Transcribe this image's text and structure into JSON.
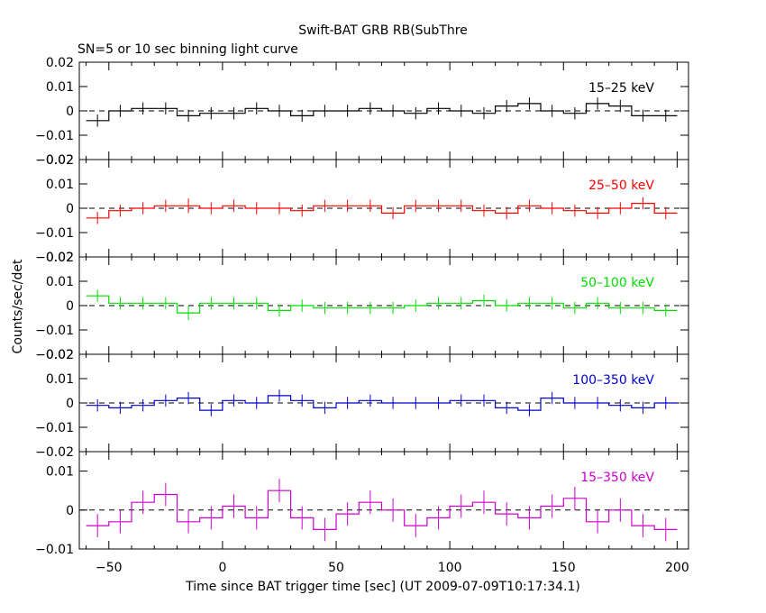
{
  "title": "Swift-BAT GRB RB(SubThre",
  "subtitle": "SN=5 or 10 sec binning light curve",
  "chart_data": {
    "type": "line",
    "xlabel": "Time since BAT trigger time [sec] (UT 2009-07-09T10:17:34.1)",
    "ylabel": "Counts/sec/det",
    "xlim": [
      -63,
      205
    ],
    "x_ticks": [
      -50,
      0,
      50,
      100,
      150,
      200
    ],
    "x_tick_labels": [
      "−50",
      "0",
      "50",
      "100",
      "150",
      "200"
    ],
    "bin_width": 10,
    "bin_centers": [
      -55,
      -45,
      -35,
      -25,
      -15,
      -5,
      5,
      15,
      25,
      35,
      45,
      55,
      65,
      75,
      85,
      95,
      105,
      115,
      125,
      135,
      145,
      155,
      165,
      175,
      185,
      195
    ],
    "baseline": 0,
    "panels": [
      {
        "label": "15–25 keV",
        "color": "#000000",
        "ylim": [
          -0.02,
          0.02
        ],
        "y_ticks": [
          -0.02,
          -0.01,
          0,
          0.01,
          0.02
        ],
        "y_tick_labels": [
          "−0.02",
          "−0.01",
          "0",
          "0.01",
          "0.02"
        ],
        "values": [
          -0.004,
          0.0,
          0.001,
          0.001,
          -0.002,
          -0.001,
          -0.001,
          0.001,
          0.0,
          -0.002,
          0.0,
          0.0,
          0.001,
          0.0,
          -0.001,
          0.001,
          0.0,
          -0.001,
          0.002,
          0.003,
          0.0,
          -0.001,
          0.003,
          0.002,
          -0.002,
          -0.002
        ],
        "errors": [
          0.0025,
          0.0025,
          0.0025,
          0.0025,
          0.0025,
          0.0025,
          0.0025,
          0.0025,
          0.0025,
          0.0025,
          0.0025,
          0.0025,
          0.0025,
          0.0025,
          0.0025,
          0.0025,
          0.0025,
          0.0025,
          0.0025,
          0.0025,
          0.0025,
          0.0025,
          0.0025,
          0.0025,
          0.0025,
          0.0025
        ]
      },
      {
        "label": "25–50 keV",
        "color": "#ff0000",
        "ylim": [
          -0.02,
          0.02
        ],
        "y_ticks": [
          -0.02,
          -0.01,
          0,
          0.01,
          0.02
        ],
        "y_tick_labels": [
          "−0.02",
          "−0.01",
          "0",
          "0.01",
          "0.02"
        ],
        "values": [
          -0.004,
          -0.001,
          0.0,
          0.001,
          0.001,
          0.0,
          0.001,
          0.0,
          0.0,
          -0.001,
          0.001,
          0.001,
          0.001,
          -0.002,
          0.001,
          0.001,
          0.001,
          -0.001,
          -0.002,
          0.001,
          0.0,
          -0.001,
          -0.002,
          0.0,
          0.002,
          -0.002
        ],
        "errors": [
          0.0025,
          0.0025,
          0.0025,
          0.0025,
          0.003,
          0.0025,
          0.0025,
          0.0025,
          0.0025,
          0.0025,
          0.0025,
          0.0025,
          0.0025,
          0.0025,
          0.0025,
          0.0025,
          0.0025,
          0.0025,
          0.0025,
          0.0025,
          0.0025,
          0.0025,
          0.0025,
          0.0025,
          0.0025,
          0.0025
        ]
      },
      {
        "label": "50–100 keV",
        "color": "#00dd00",
        "ylim": [
          -0.02,
          0.02
        ],
        "y_ticks": [
          -0.02,
          -0.01,
          0,
          0.01,
          0.02
        ],
        "y_tick_labels": [
          "−0.02",
          "−0.01",
          "0",
          "0.01",
          "0.02"
        ],
        "values": [
          0.004,
          0.001,
          0.001,
          0.001,
          -0.003,
          0.001,
          0.001,
          0.001,
          -0.002,
          0.0,
          -0.001,
          -0.001,
          -0.001,
          -0.001,
          0.0,
          0.001,
          0.001,
          0.002,
          0.0,
          0.001,
          0.001,
          -0.001,
          0.001,
          -0.001,
          -0.001,
          -0.002
        ],
        "errors": [
          0.0025,
          0.0025,
          0.0025,
          0.0025,
          0.003,
          0.0025,
          0.0025,
          0.0025,
          0.0025,
          0.0025,
          0.0025,
          0.0025,
          0.0025,
          0.0025,
          0.0025,
          0.0025,
          0.0025,
          0.0025,
          0.0025,
          0.0025,
          0.0025,
          0.0025,
          0.0025,
          0.0025,
          0.0025,
          0.0025
        ]
      },
      {
        "label": "100–350 keV",
        "color": "#0000cc",
        "ylim": [
          -0.02,
          0.02
        ],
        "y_ticks": [
          -0.02,
          -0.01,
          0,
          0.01,
          0.02
        ],
        "y_tick_labels": [
          "−0.02",
          "−0.01",
          "0",
          "0.01",
          "0.02"
        ],
        "values": [
          -0.001,
          -0.002,
          -0.001,
          0.001,
          0.002,
          -0.003,
          0.001,
          0.0,
          0.003,
          0.001,
          -0.002,
          0.0,
          0.001,
          0.0,
          0.0,
          0.0,
          0.001,
          0.001,
          -0.002,
          -0.003,
          0.002,
          0.0,
          0.0,
          -0.001,
          -0.002,
          0.0
        ],
        "errors": [
          0.0025,
          0.0025,
          0.0025,
          0.0025,
          0.0025,
          0.0025,
          0.0025,
          0.0025,
          0.0025,
          0.0025,
          0.0025,
          0.0025,
          0.0025,
          0.0025,
          0.0025,
          0.0025,
          0.0025,
          0.0025,
          0.0025,
          0.0025,
          0.0025,
          0.0025,
          0.0025,
          0.0025,
          0.0025,
          0.0025
        ]
      },
      {
        "label": "15–350 keV",
        "color": "#cc00cc",
        "ylim": [
          -0.01,
          0.015
        ],
        "y_ticks": [
          -0.01,
          0,
          0.01
        ],
        "y_tick_labels": [
          "−0.01",
          "0",
          "0.01"
        ],
        "values": [
          -0.004,
          -0.003,
          0.002,
          0.004,
          -0.003,
          -0.002,
          0.001,
          -0.002,
          0.005,
          -0.002,
          -0.005,
          -0.001,
          0.002,
          0.0,
          -0.004,
          -0.002,
          0.001,
          0.002,
          -0.001,
          -0.002,
          0.001,
          0.003,
          -0.003,
          0.0,
          -0.004,
          -0.005
        ],
        "errors": [
          0.003,
          0.003,
          0.003,
          0.003,
          0.003,
          0.003,
          0.003,
          0.003,
          0.003,
          0.003,
          0.003,
          0.003,
          0.003,
          0.003,
          0.003,
          0.003,
          0.003,
          0.003,
          0.003,
          0.003,
          0.003,
          0.003,
          0.003,
          0.003,
          0.003,
          0.003
        ]
      }
    ]
  }
}
